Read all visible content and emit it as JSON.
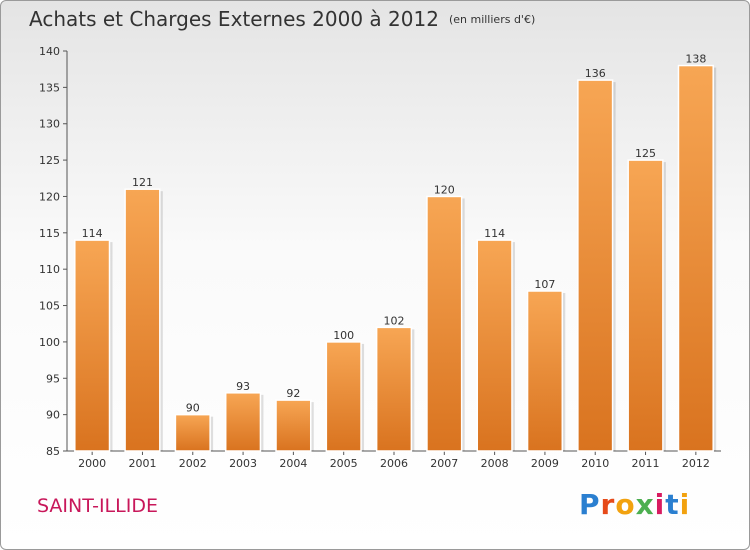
{
  "chart_data": {
    "type": "bar",
    "title": "Achats et Charges Externes 2000 à 2012",
    "subtitle": "(en milliers d'€)",
    "categories": [
      "2000",
      "2001",
      "2002",
      "2003",
      "2004",
      "2005",
      "2006",
      "2007",
      "2008",
      "2009",
      "2010",
      "2011",
      "2012"
    ],
    "values": [
      114,
      121,
      90,
      93,
      92,
      100,
      102,
      120,
      114,
      107,
      136,
      125,
      138
    ],
    "ylim": [
      85,
      140
    ],
    "yticks": [
      85,
      90,
      95,
      100,
      105,
      110,
      115,
      120,
      125,
      130,
      135,
      140
    ],
    "grid": false,
    "bar_color": "#f0913a"
  },
  "place": "SAINT-ILLIDE",
  "logo": {
    "letters": [
      "P",
      "r",
      "o",
      "x",
      "i",
      "t",
      "i"
    ]
  }
}
